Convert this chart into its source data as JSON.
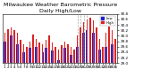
{
  "title": "Milwaukee Weather Barometric Pressure",
  "subtitle": "Daily High/Low",
  "ylim": [
    29.0,
    30.8
  ],
  "yticks": [
    29.0,
    29.2,
    29.4,
    29.6,
    29.8,
    30.0,
    30.2,
    30.4,
    30.6,
    30.8
  ],
  "ytick_labels": [
    "29.0",
    "29.2",
    "29.4",
    "29.6",
    "29.8",
    "30.0",
    "30.2",
    "30.4",
    "30.6",
    "30.8"
  ],
  "highs": [
    30.1,
    30.25,
    30.3,
    30.2,
    30.1,
    29.85,
    29.7,
    29.6,
    29.8,
    30.05,
    29.9,
    29.75,
    29.7,
    29.85,
    30.0,
    29.75,
    29.6,
    29.5,
    29.65,
    29.8,
    29.7,
    29.6,
    29.5,
    30.0,
    30.3,
    30.5,
    30.6,
    30.65,
    30.55,
    30.3,
    29.9,
    29.6,
    30.1,
    30.35,
    30.2,
    29.9
  ],
  "lows": [
    29.8,
    29.95,
    30.0,
    29.9,
    29.7,
    29.55,
    29.4,
    29.3,
    29.55,
    29.75,
    29.6,
    29.45,
    29.4,
    29.55,
    29.7,
    29.45,
    29.2,
    29.1,
    29.3,
    29.55,
    29.4,
    29.3,
    29.15,
    29.6,
    29.9,
    30.1,
    30.2,
    30.25,
    30.1,
    29.8,
    29.5,
    29.2,
    29.6,
    29.9,
    29.7,
    29.4
  ],
  "high_color": "#dd2222",
  "low_color": "#2222cc",
  "bg_color": "#ffffff",
  "legend_high": "High",
  "legend_low": "Low",
  "title_fontsize": 4.5,
  "tick_fontsize": 3.0,
  "dashed_bar_indices": [
    23,
    24,
    25,
    26
  ],
  "bar_width": 0.7,
  "ybaseline": 29.0
}
